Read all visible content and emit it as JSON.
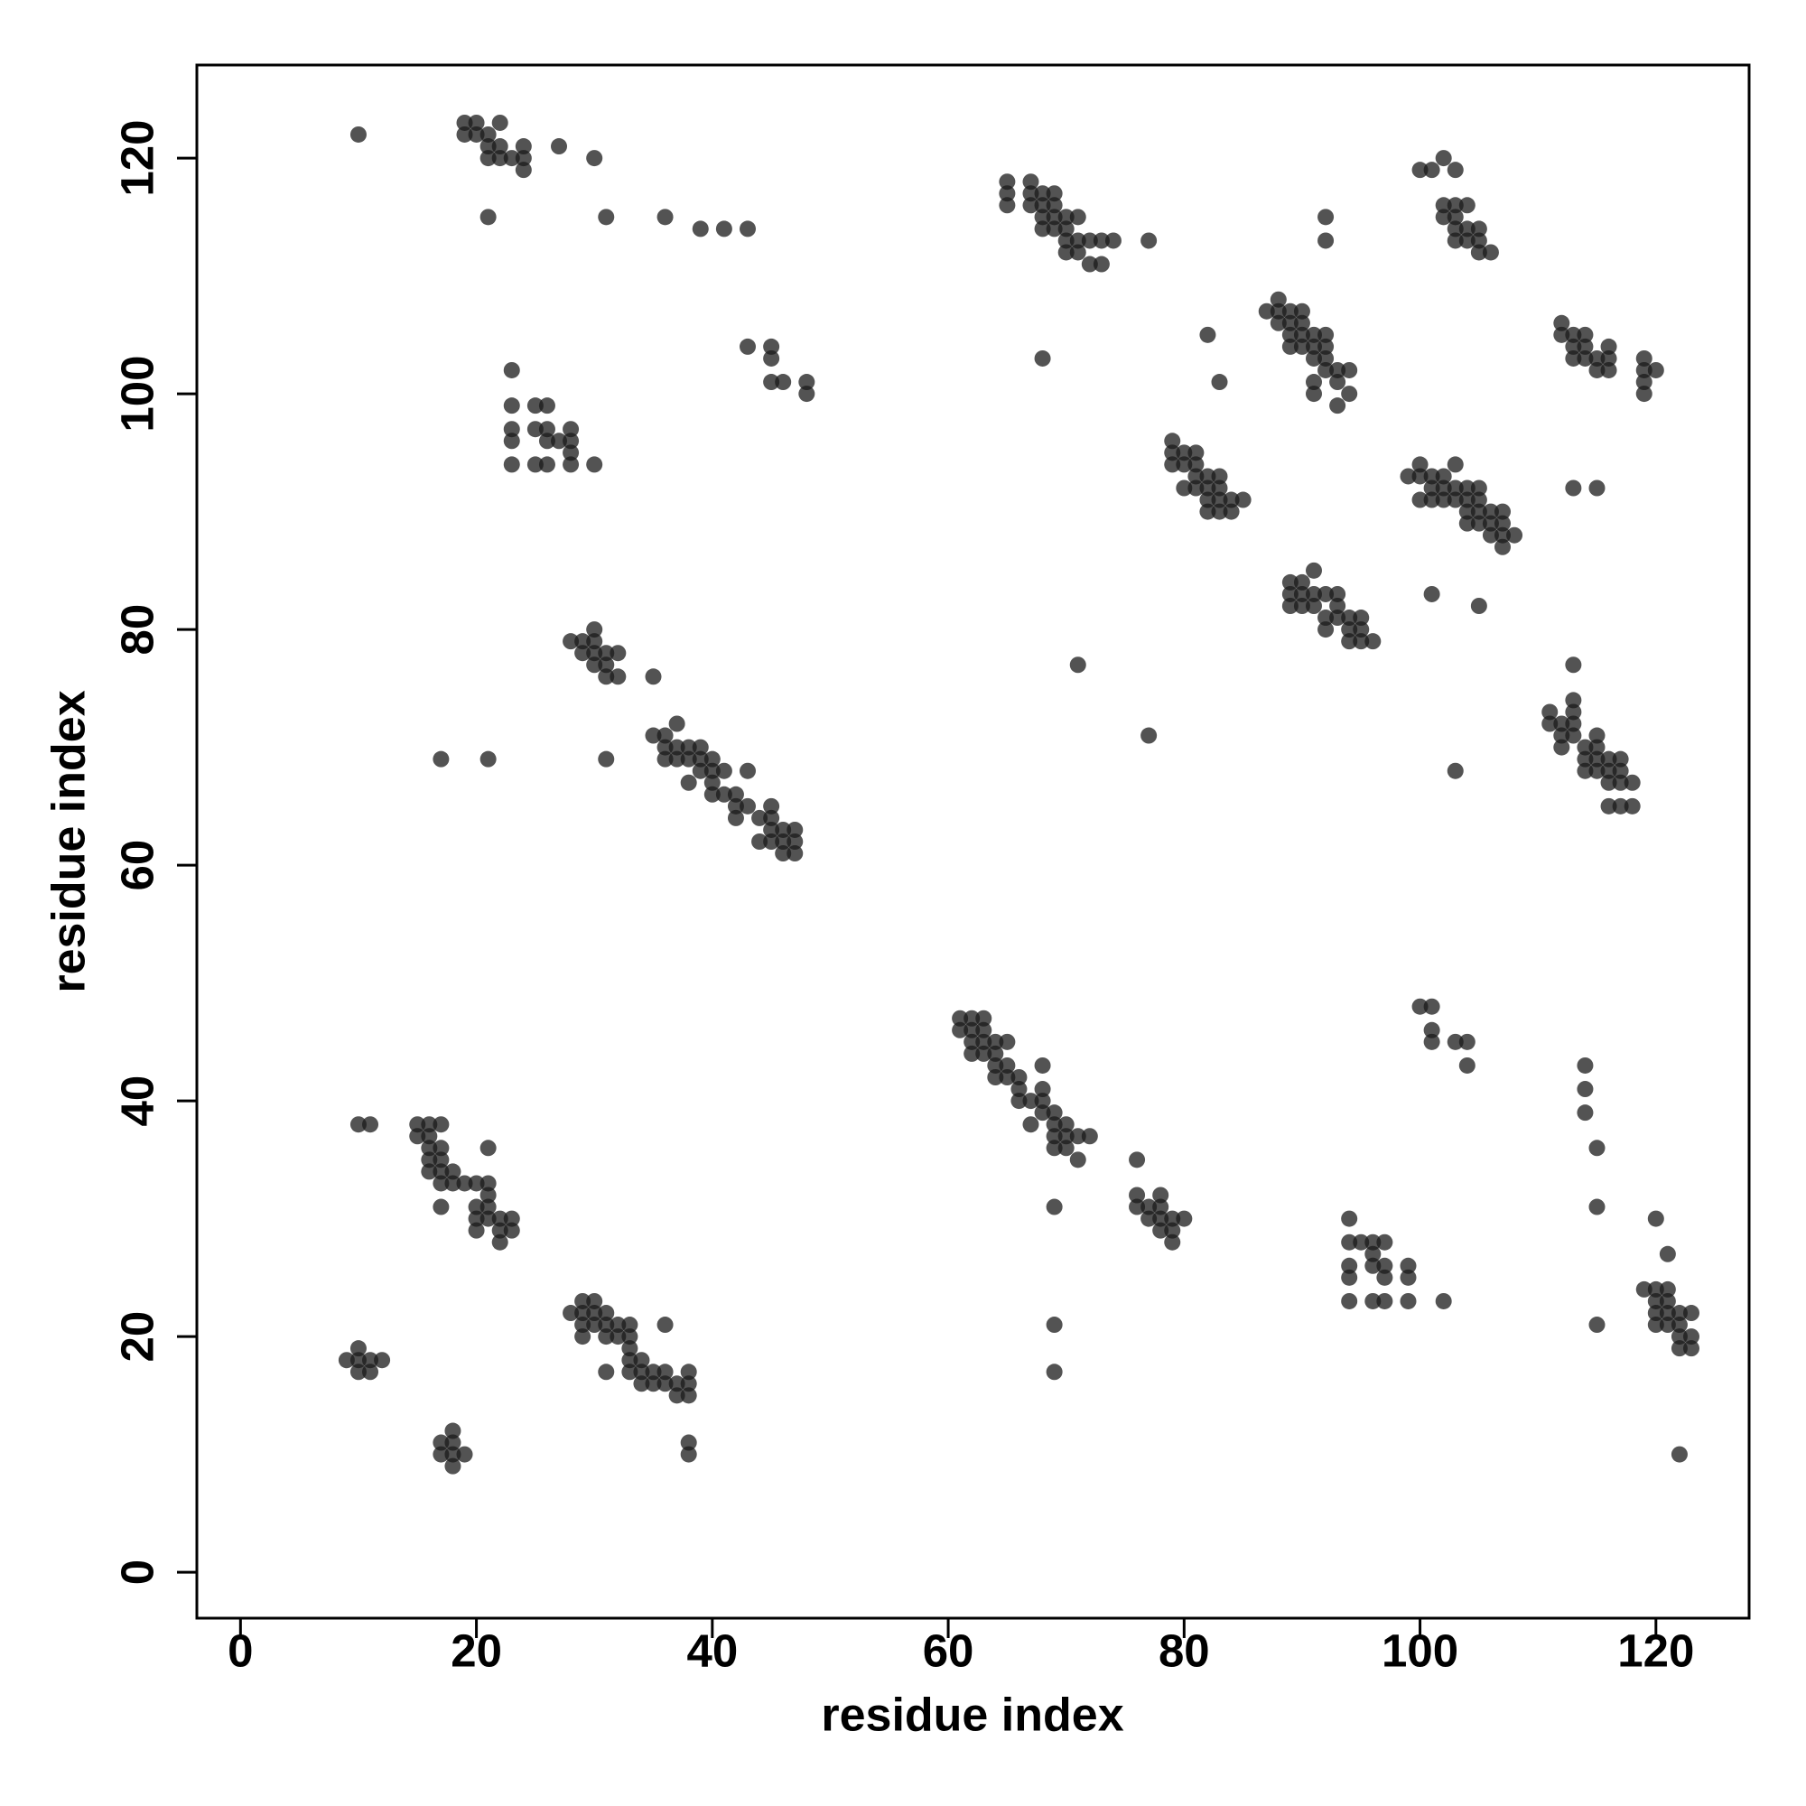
{
  "chart_data": {
    "type": "scatter",
    "x_label": "residue index",
    "y_label": "residue index",
    "xlim": [
      -3.7,
      127.9
    ],
    "ylim": [
      -3.9,
      127.9
    ],
    "xticks": [
      0,
      20,
      40,
      60,
      80,
      100,
      120
    ],
    "yticks": [
      0,
      20,
      40,
      60,
      80,
      100,
      120
    ],
    "color": "#1a1a1a",
    "alpha": 0.75,
    "x": [
      10,
      19,
      20,
      22,
      19,
      20,
      21,
      21,
      22,
      22,
      21,
      23,
      24,
      24,
      24,
      27,
      30,
      21,
      31,
      36,
      39,
      41,
      43,
      23,
      23,
      25,
      26,
      23,
      25,
      26,
      26,
      23,
      27,
      28,
      28,
      28,
      23,
      25,
      26,
      28,
      30,
      43,
      45,
      45,
      45,
      46,
      48,
      48,
      28,
      29,
      30,
      30,
      29,
      30,
      31,
      32,
      30,
      31,
      31,
      32,
      35,
      35,
      36,
      37,
      36,
      37,
      38,
      39,
      36,
      37,
      38,
      39,
      40,
      39,
      40,
      41,
      43,
      38,
      40,
      40,
      41,
      42,
      42,
      43,
      44,
      42,
      45,
      45,
      45,
      46,
      47,
      44,
      45,
      46,
      47,
      46,
      47,
      17,
      21,
      31,
      10,
      11,
      15,
      16,
      17,
      15,
      16,
      16,
      17,
      21,
      16,
      17,
      16,
      17,
      18,
      17,
      18,
      19,
      20,
      21,
      21,
      17,
      20,
      21,
      20,
      21,
      22,
      23,
      20,
      22,
      23,
      22,
      9,
      10,
      10,
      11,
      12,
      10,
      11,
      18,
      17,
      18,
      17,
      18,
      19,
      18,
      28,
      29,
      30,
      29,
      30,
      31,
      29,
      30,
      31,
      32,
      33,
      29,
      31,
      32,
      33,
      33,
      36,
      33,
      34,
      31,
      33,
      34,
      35,
      36,
      38,
      34,
      35,
      36,
      37,
      38,
      37,
      38,
      38,
      38,
      61,
      62,
      63,
      61,
      62,
      63,
      62,
      63,
      64,
      65,
      62,
      63,
      64,
      64,
      65,
      68,
      64,
      65,
      66,
      66,
      68,
      66,
      67,
      68,
      68,
      69,
      67,
      69,
      70,
      69,
      70,
      71,
      72,
      69,
      70,
      71,
      76,
      76,
      78,
      76,
      77,
      78,
      77,
      78,
      79,
      80,
      78,
      79,
      79,
      69,
      69,
      69,
      94,
      94,
      95,
      96,
      97,
      94,
      96,
      96,
      97,
      94,
      97,
      99,
      99,
      94,
      96,
      97,
      99,
      102,
      100,
      101,
      101,
      101,
      103,
      104,
      104,
      114,
      114,
      114,
      115,
      115,
      115,
      122,
      120,
      121,
      119,
      120,
      121,
      120,
      121,
      120,
      121,
      122,
      123,
      120,
      121,
      122,
      122,
      123,
      122,
      123,
      65,
      67,
      65,
      67,
      68,
      69,
      65,
      67,
      68,
      69,
      68,
      69,
      70,
      71,
      68,
      69,
      70,
      70,
      71,
      72,
      73,
      74,
      70,
      71,
      72,
      73,
      77,
      68,
      100,
      101,
      102,
      103,
      102,
      103,
      104,
      102,
      103,
      103,
      104,
      105,
      103,
      104,
      105,
      105,
      106,
      92,
      92,
      87,
      88,
      88,
      89,
      90,
      88,
      89,
      90,
      89,
      90,
      91,
      92,
      89,
      90,
      91,
      92,
      91,
      92,
      92,
      93,
      94,
      91,
      93,
      91,
      94,
      93,
      82,
      83,
      112,
      112,
      113,
      114,
      113,
      114,
      115,
      116,
      113,
      114,
      116,
      115,
      116,
      119,
      119,
      120,
      119,
      119,
      79,
      79,
      80,
      81,
      79,
      80,
      81,
      81,
      82,
      83,
      80,
      81,
      82,
      83,
      82,
      83,
      84,
      85,
      82,
      83,
      84,
      99,
      100,
      100,
      101,
      102,
      103,
      101,
      102,
      103,
      104,
      105,
      100,
      101,
      102,
      103,
      104,
      105,
      104,
      105,
      106,
      107,
      104,
      105,
      106,
      107,
      106,
      107,
      108,
      107,
      113,
      115,
      89,
      90,
      91,
      89,
      90,
      91,
      92,
      93,
      89,
      90,
      91,
      93,
      92,
      93,
      94,
      95,
      92,
      94,
      95,
      94,
      95,
      96,
      101,
      105,
      71,
      77,
      113,
      113,
      111,
      113,
      111,
      112,
      113,
      112,
      113,
      115,
      112,
      114,
      115,
      116,
      114,
      115,
      117,
      114,
      115,
      116,
      117,
      116,
      117,
      118,
      116,
      117,
      118,
      103
    ],
    "values": [
      122,
      123,
      123,
      123,
      122,
      122,
      122,
      121,
      121,
      120,
      120,
      120,
      121,
      120,
      119,
      121,
      120,
      115,
      115,
      115,
      114,
      114,
      114,
      102,
      99,
      99,
      99,
      97,
      97,
      97,
      96,
      96,
      96,
      97,
      96,
      95,
      94,
      94,
      94,
      94,
      94,
      104,
      104,
      103,
      101,
      101,
      101,
      100,
      79,
      79,
      80,
      79,
      78,
      78,
      78,
      78,
      77,
      77,
      76,
      76,
      76,
      71,
      71,
      72,
      70,
      70,
      70,
      70,
      69,
      69,
      69,
      69,
      69,
      68,
      68,
      68,
      68,
      67,
      67,
      66,
      66,
      66,
      65,
      65,
      64,
      64,
      65,
      64,
      63,
      63,
      63,
      62,
      62,
      62,
      62,
      61,
      61,
      69,
      69,
      69,
      38,
      38,
      38,
      38,
      38,
      37,
      37,
      36,
      36,
      36,
      35,
      35,
      34,
      34,
      34,
      33,
      33,
      33,
      33,
      33,
      32,
      31,
      31,
      31,
      30,
      30,
      30,
      30,
      29,
      29,
      29,
      28,
      18,
      19,
      18,
      18,
      18,
      17,
      17,
      12,
      11,
      11,
      10,
      10,
      10,
      9,
      22,
      23,
      23,
      22,
      22,
      22,
      21,
      21,
      21,
      21,
      21,
      20,
      20,
      20,
      20,
      19,
      21,
      18,
      18,
      17,
      17,
      17,
      17,
      17,
      17,
      16,
      16,
      16,
      16,
      16,
      15,
      15,
      11,
      10,
      47,
      47,
      47,
      46,
      46,
      46,
      45,
      45,
      45,
      45,
      44,
      44,
      44,
      43,
      43,
      43,
      42,
      42,
      42,
      41,
      41,
      40,
      40,
      40,
      39,
      39,
      38,
      38,
      38,
      37,
      37,
      37,
      37,
      36,
      36,
      35,
      35,
      32,
      32,
      31,
      31,
      31,
      30,
      30,
      30,
      30,
      29,
      29,
      28,
      31,
      21,
      17,
      30,
      28,
      28,
      28,
      28,
      26,
      27,
      26,
      26,
      25,
      25,
      26,
      25,
      23,
      23,
      23,
      23,
      23,
      48,
      48,
      46,
      45,
      45,
      45,
      43,
      43,
      41,
      39,
      36,
      31,
      21,
      10,
      30,
      27,
      24,
      24,
      24,
      23,
      23,
      22,
      22,
      22,
      22,
      21,
      21,
      21,
      20,
      20,
      19,
      19,
      118,
      118,
      117,
      117,
      117,
      117,
      116,
      116,
      116,
      116,
      115,
      115,
      115,
      115,
      114,
      114,
      114,
      113,
      113,
      113,
      113,
      113,
      112,
      112,
      111,
      111,
      113,
      103,
      119,
      119,
      120,
      119,
      116,
      116,
      116,
      115,
      115,
      114,
      114,
      114,
      113,
      113,
      113,
      112,
      112,
      115,
      113,
      107,
      108,
      107,
      107,
      107,
      106,
      106,
      106,
      105,
      105,
      105,
      105,
      104,
      104,
      104,
      104,
      103,
      103,
      102,
      102,
      102,
      101,
      101,
      100,
      100,
      99,
      105,
      101,
      106,
      105,
      105,
      105,
      104,
      104,
      103,
      104,
      103,
      103,
      103,
      102,
      102,
      103,
      102,
      102,
      101,
      100,
      96,
      95,
      95,
      95,
      94,
      94,
      94,
      93,
      93,
      93,
      92,
      92,
      92,
      92,
      91,
      91,
      91,
      91,
      90,
      90,
      90,
      93,
      94,
      93,
      93,
      93,
      94,
      92,
      92,
      92,
      92,
      92,
      91,
      91,
      91,
      91,
      91,
      91,
      90,
      90,
      90,
      90,
      89,
      89,
      89,
      89,
      88,
      88,
      88,
      87,
      92,
      92,
      84,
      84,
      85,
      83,
      83,
      83,
      83,
      83,
      82,
      82,
      82,
      82,
      81,
      81,
      81,
      81,
      80,
      80,
      80,
      79,
      79,
      79,
      83,
      82,
      77,
      71,
      77,
      74,
      73,
      73,
      72,
      72,
      72,
      71,
      71,
      71,
      70,
      70,
      70,
      69,
      69,
      69,
      69,
      68,
      68,
      68,
      68,
      67,
      67,
      67,
      65,
      65,
      65,
      68
    ]
  }
}
